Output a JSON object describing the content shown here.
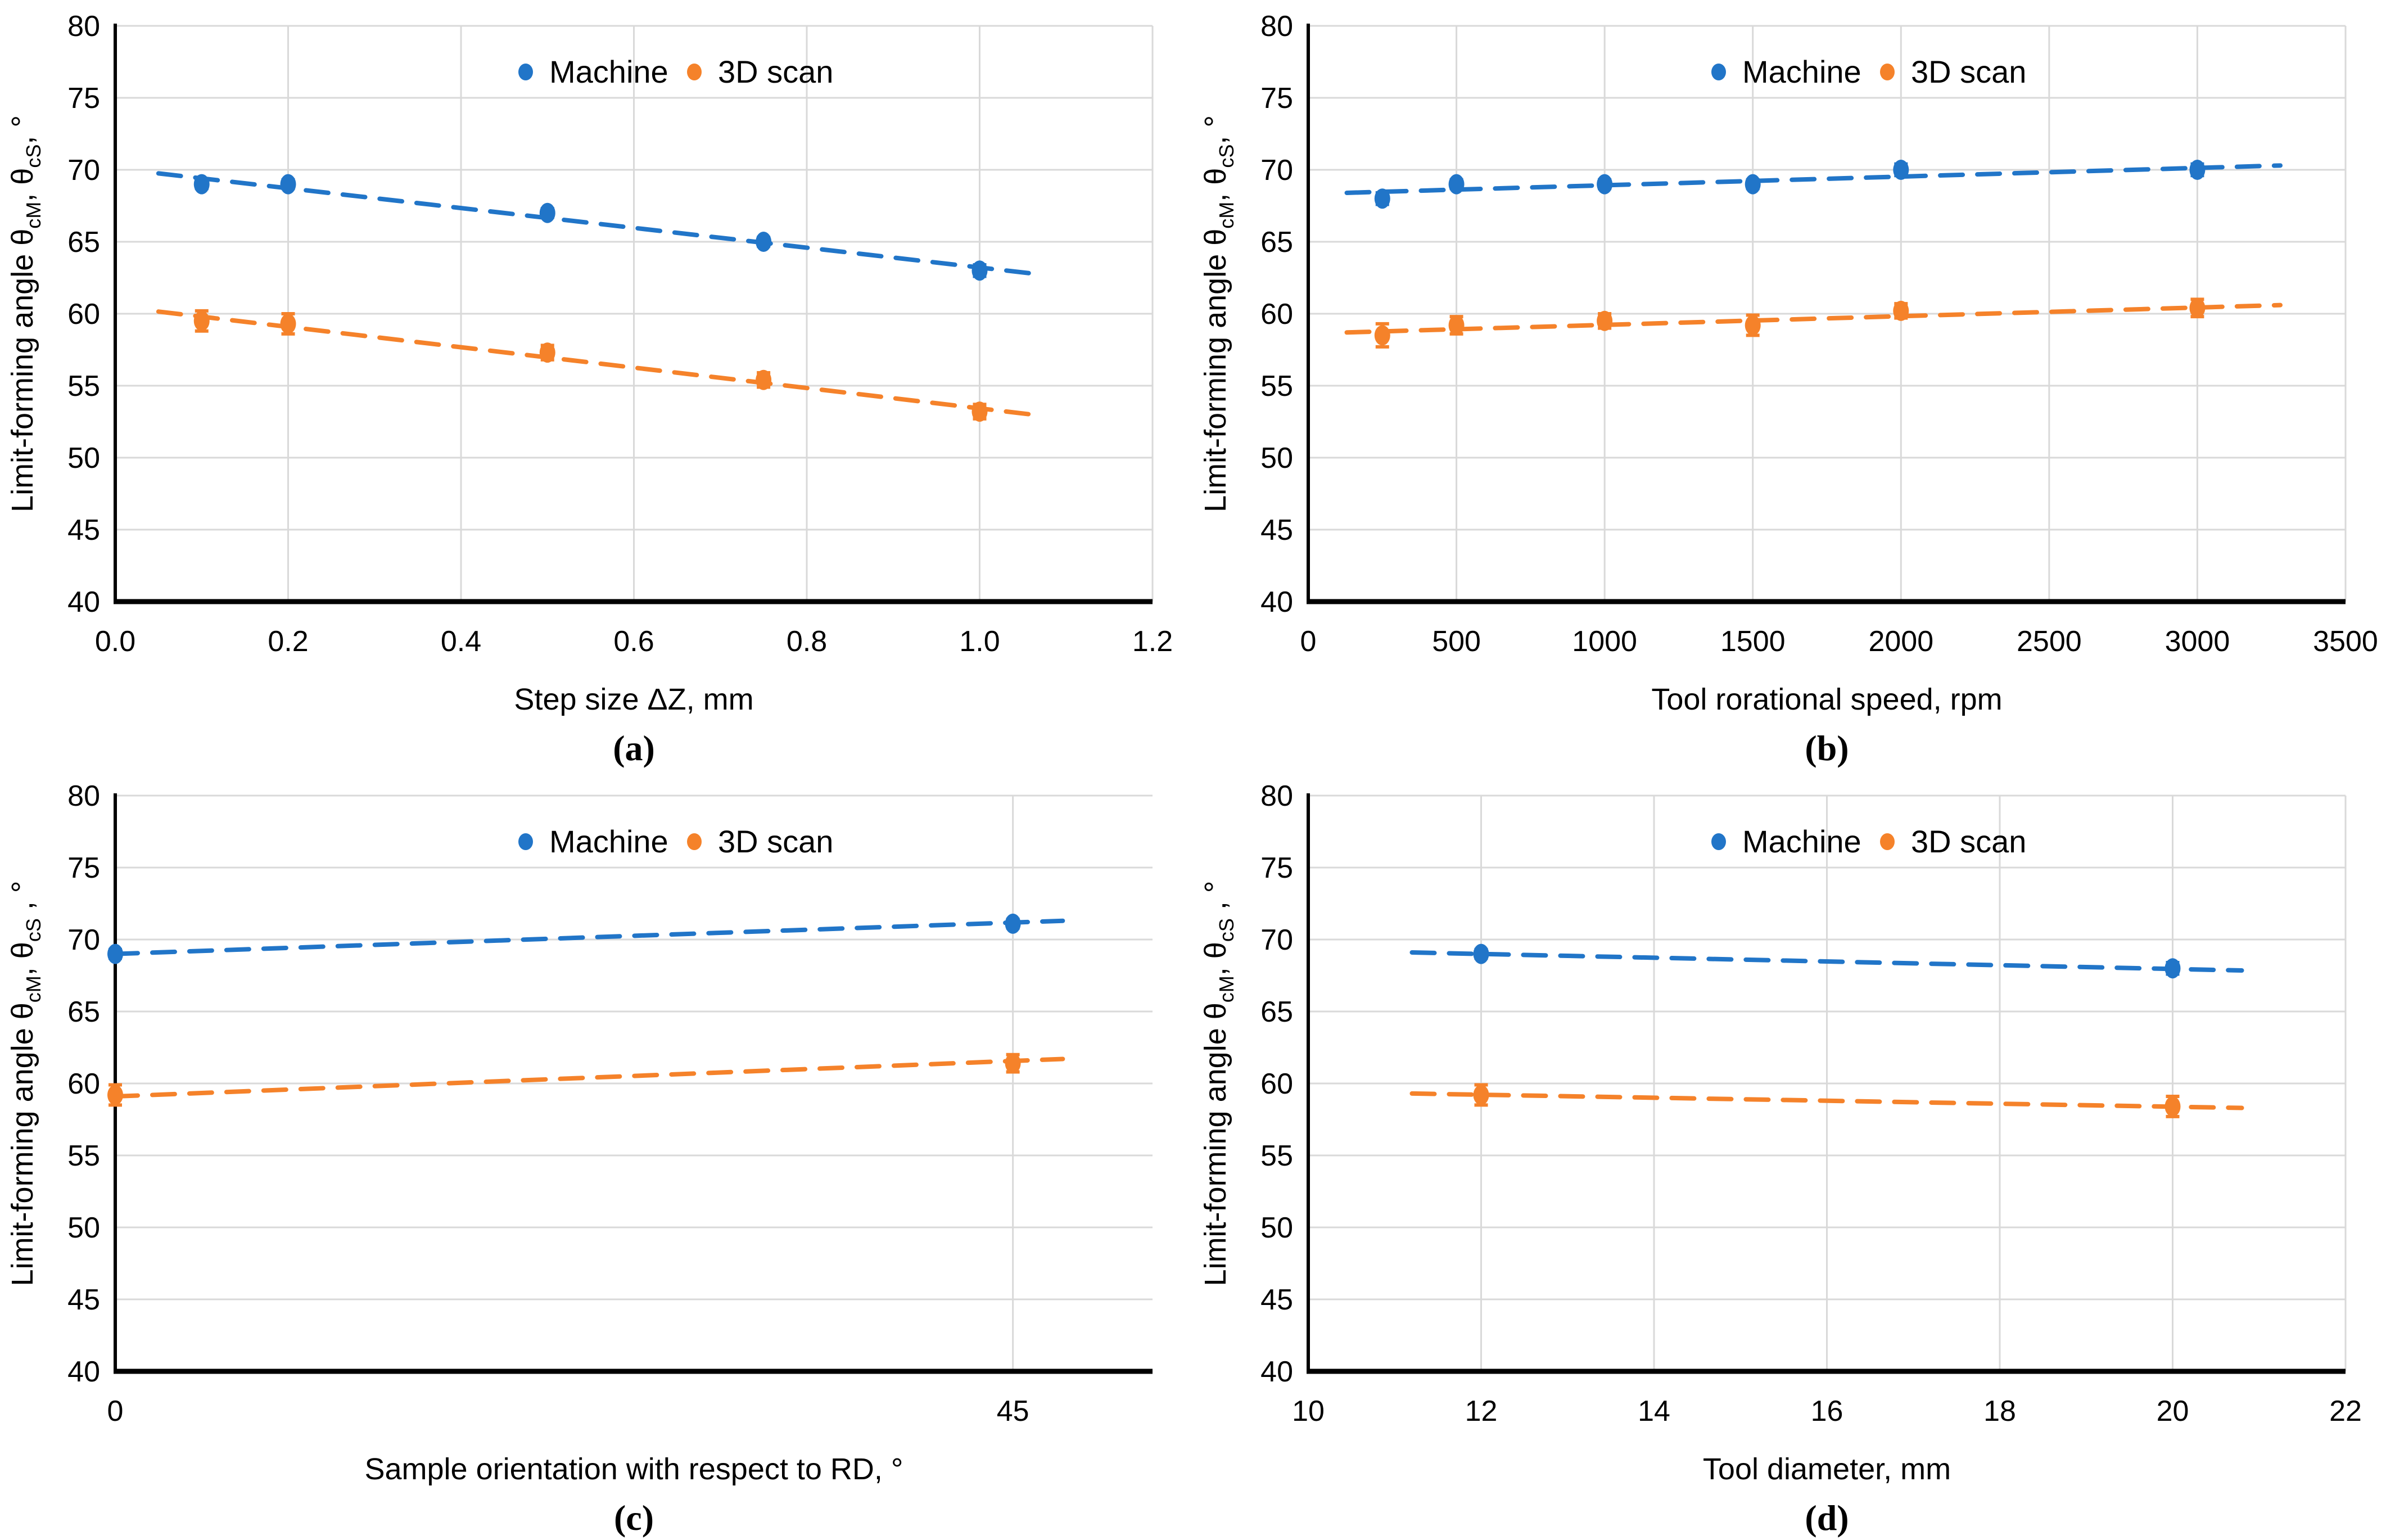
{
  "figure": {
    "background": "#FFFFFF"
  },
  "colors": {
    "machine": "#2175C8",
    "scan": "#F5822A",
    "grid": "#D9D9D9",
    "axis": "#000000",
    "text": "#000000"
  },
  "legend": {
    "items": [
      "Machine",
      "3D scan"
    ]
  },
  "chart_data": [
    {
      "id": "a",
      "type": "scatter",
      "caption": "(a)",
      "xlabel": "Step size ΔZ,  mm",
      "ylabel": {
        "pre": "Limit-forming angle θ",
        "sub1": "cM",
        "mid": ",  θ",
        "sub2": "cS",
        "post": ", °"
      },
      "xlim": [
        0,
        1.2
      ],
      "ylim": [
        40,
        80
      ],
      "xticks": [
        {
          "v": 0.0,
          "label": "0.0"
        },
        {
          "v": 0.2,
          "label": "0.2"
        },
        {
          "v": 0.4,
          "label": "0.4"
        },
        {
          "v": 0.6,
          "label": "0.6"
        },
        {
          "v": 0.8,
          "label": "0.8"
        },
        {
          "v": 1.0,
          "label": "1.0"
        },
        {
          "v": 1.2,
          "label": "1.2"
        }
      ],
      "yticks": [
        40,
        45,
        50,
        55,
        60,
        65,
        70,
        75,
        80
      ],
      "grid": true,
      "legend_position": "top-center",
      "series": [
        {
          "name": "Machine",
          "key": "machine",
          "x": [
            0.1,
            0.2,
            0.5,
            0.75,
            1.0
          ],
          "y": [
            69.0,
            69.0,
            67.0,
            65.0,
            63.0
          ],
          "err": [
            0.3,
            0.3,
            0.3,
            0.3,
            0.4
          ],
          "trend": {
            "x1": 0.05,
            "y1": 69.75,
            "x2": 1.06,
            "y2": 62.8
          }
        },
        {
          "name": "3D scan",
          "key": "scan",
          "x": [
            0.1,
            0.2,
            0.5,
            0.75,
            1.0
          ],
          "y": [
            59.5,
            59.3,
            57.3,
            55.4,
            53.2
          ],
          "err": [
            0.7,
            0.7,
            0.5,
            0.5,
            0.5
          ],
          "trend": {
            "x1": 0.05,
            "y1": 60.15,
            "x2": 1.06,
            "y2": 53.0
          }
        }
      ]
    },
    {
      "id": "b",
      "type": "scatter",
      "caption": "(b)",
      "xlabel": "Tool rorational speed, rpm",
      "ylabel": {
        "pre": "Limit-forming angle θ",
        "sub1": "cM",
        "mid": ",  θ",
        "sub2": "cS",
        "post": ", °"
      },
      "xlim": [
        0,
        3500
      ],
      "ylim": [
        40,
        80
      ],
      "xticks": [
        {
          "v": 0,
          "label": "0"
        },
        {
          "v": 500,
          "label": "500"
        },
        {
          "v": 1000,
          "label": "1000"
        },
        {
          "v": 1500,
          "label": "1500"
        },
        {
          "v": 2000,
          "label": "2000"
        },
        {
          "v": 2500,
          "label": "2500"
        },
        {
          "v": 3000,
          "label": "3000"
        },
        {
          "v": 3500,
          "label": "3500"
        }
      ],
      "yticks": [
        40,
        45,
        50,
        55,
        60,
        65,
        70,
        75,
        80
      ],
      "grid": true,
      "legend_position": "top-center",
      "series": [
        {
          "name": "Machine",
          "key": "machine",
          "x": [
            250,
            500,
            1000,
            1500,
            2000,
            3000
          ],
          "y": [
            68.0,
            69.0,
            69.0,
            69.0,
            70.0,
            70.0
          ],
          "err": [
            0.4,
            0.3,
            0.3,
            0.3,
            0.4,
            0.4
          ],
          "trend": {
            "x1": 130,
            "y1": 68.4,
            "x2": 3280,
            "y2": 70.3
          }
        },
        {
          "name": "3D scan",
          "key": "scan",
          "x": [
            250,
            500,
            1000,
            1500,
            2000,
            3000
          ],
          "y": [
            58.5,
            59.2,
            59.5,
            59.2,
            60.2,
            60.4
          ],
          "err": [
            0.8,
            0.6,
            0.5,
            0.7,
            0.5,
            0.6
          ],
          "trend": {
            "x1": 130,
            "y1": 58.7,
            "x2": 3280,
            "y2": 60.6
          }
        }
      ]
    },
    {
      "id": "c",
      "type": "scatter",
      "caption": "(c)",
      "xlabel": "Sample orientation with respect to RD, °",
      "ylabel": {
        "pre": "Limit-forming angle θ",
        "sub1": "cM",
        "mid": ",  θ",
        "sub2": "cS",
        "post": " , °"
      },
      "xlim": [
        0,
        52
      ],
      "ylim": [
        40,
        80
      ],
      "xticks": [
        {
          "v": 0,
          "label": "0"
        },
        {
          "v": 45,
          "label": "45"
        }
      ],
      "yticks": [
        40,
        45,
        50,
        55,
        60,
        65,
        70,
        75,
        80
      ],
      "grid": true,
      "legend_position": "top-center",
      "series": [
        {
          "name": "Machine",
          "key": "machine",
          "x": [
            0,
            45
          ],
          "y": [
            69.0,
            71.1
          ],
          "err": [
            0.3,
            0.3
          ],
          "trend": {
            "x1": 0,
            "y1": 69.0,
            "x2": 47.5,
            "y2": 71.3
          }
        },
        {
          "name": "3D scan",
          "key": "scan",
          "x": [
            0,
            45
          ],
          "y": [
            59.2,
            61.4
          ],
          "err": [
            0.7,
            0.6
          ],
          "trend": {
            "x1": 0,
            "y1": 59.1,
            "x2": 47.5,
            "y2": 61.7
          }
        }
      ]
    },
    {
      "id": "d",
      "type": "scatter",
      "caption": "(d)",
      "xlabel": "Tool diameter,  mm",
      "ylabel": {
        "pre": "Limit-forming angle θ",
        "sub1": "cM",
        "mid": ",  θ",
        "sub2": "cS",
        "post": " , °"
      },
      "xlim": [
        10,
        22
      ],
      "ylim": [
        40,
        80
      ],
      "xticks": [
        {
          "v": 10,
          "label": "10"
        },
        {
          "v": 12,
          "label": "12"
        },
        {
          "v": 14,
          "label": "14"
        },
        {
          "v": 16,
          "label": "16"
        },
        {
          "v": 18,
          "label": "18"
        },
        {
          "v": 20,
          "label": "20"
        },
        {
          "v": 22,
          "label": "22"
        }
      ],
      "yticks": [
        40,
        45,
        50,
        55,
        60,
        65,
        70,
        75,
        80
      ],
      "grid": true,
      "legend_position": "top-center",
      "series": [
        {
          "name": "Machine",
          "key": "machine",
          "x": [
            12,
            20
          ],
          "y": [
            69.0,
            68.0
          ],
          "err": [
            0.3,
            0.4
          ],
          "trend": {
            "x1": 11.2,
            "y1": 69.1,
            "x2": 20.8,
            "y2": 67.85
          }
        },
        {
          "name": "3D scan",
          "key": "scan",
          "x": [
            12,
            20
          ],
          "y": [
            59.2,
            58.4
          ],
          "err": [
            0.7,
            0.7
          ],
          "trend": {
            "x1": 11.2,
            "y1": 59.3,
            "x2": 20.8,
            "y2": 58.3
          }
        }
      ]
    }
  ]
}
